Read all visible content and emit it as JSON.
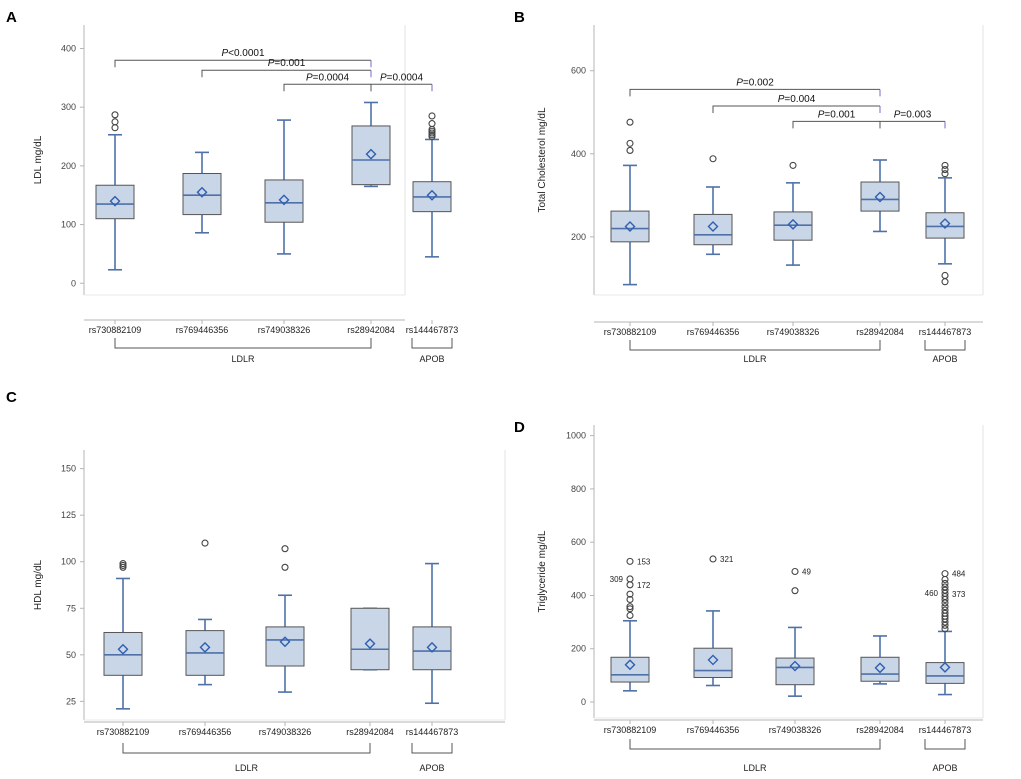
{
  "colors": {
    "box_fill": "#c9d6e8",
    "box_stroke": "#4f71a8",
    "median": "#4f71a8",
    "mean_marker": "#2f5fb0",
    "whisker": "#4f71a8",
    "outlier": "#444444",
    "bracket": "#555555",
    "frame": "#b5b5b5",
    "sig_bracket_end": "#7b68c8"
  },
  "chart_data": [
    {
      "panel": "A",
      "type": "box",
      "ylabel": "LDL mg/dL",
      "ylim": [
        -20,
        440
      ],
      "yticks": [
        0,
        100,
        200,
        300,
        400
      ],
      "categories": [
        "rs730882109",
        "rs769446356",
        "rs749038326",
        "rs28942084",
        "rs144467873"
      ],
      "groups": [
        {
          "label": "LDLR",
          "from": 0,
          "to": 3
        },
        {
          "label": "APOB",
          "from": 4,
          "to": 4
        }
      ],
      "boxes": [
        {
          "min": 23,
          "q1": 110,
          "median": 135,
          "q3": 167,
          "max": 253,
          "mean": 140,
          "outliers": [
            265,
            275,
            287
          ]
        },
        {
          "min": 86,
          "q1": 117,
          "median": 150,
          "q3": 187,
          "max": 223,
          "mean": 155,
          "outliers": []
        },
        {
          "min": 50,
          "q1": 104,
          "median": 137,
          "q3": 176,
          "max": 278,
          "mean": 142,
          "outliers": []
        },
        {
          "min": 165,
          "q1": 168,
          "median": 210,
          "q3": 268,
          "max": 308,
          "mean": 220,
          "outliers": []
        },
        {
          "min": 45,
          "q1": 122,
          "median": 147,
          "q3": 173,
          "max": 245,
          "mean": 150,
          "outliers": [
            250,
            253,
            256,
            259,
            262,
            272,
            285
          ]
        }
      ],
      "pvalues": [
        {
          "text": "P<0.0001",
          "from": 0,
          "to": 3,
          "y": 380
        },
        {
          "text": "P=0.001",
          "from": 1,
          "to": 3,
          "y": 363
        },
        {
          "text": "P=0.0004",
          "from": 2,
          "to": 3,
          "y": 339
        },
        {
          "text": "P=0.0004",
          "from": 3,
          "to": 4,
          "y": 339
        }
      ]
    },
    {
      "panel": "B",
      "type": "box",
      "ylabel": "Total Cholesterol mg/dL",
      "ylim": [
        60,
        710
      ],
      "yticks": [
        200,
        400,
        600
      ],
      "categories": [
        "rs730882109",
        "rs769446356",
        "rs749038326",
        "rs28942084",
        "rs144467873"
      ],
      "groups": [
        {
          "label": "LDLR",
          "from": 0,
          "to": 3
        },
        {
          "label": "APOB",
          "from": 4,
          "to": 4
        }
      ],
      "boxes": [
        {
          "min": 85,
          "q1": 188,
          "median": 220,
          "q3": 262,
          "max": 372,
          "mean": 225,
          "outliers": [
            408,
            425,
            476
          ]
        },
        {
          "min": 158,
          "q1": 181,
          "median": 205,
          "q3": 254,
          "max": 320,
          "mean": 225,
          "outliers": [
            388
          ]
        },
        {
          "min": 132,
          "q1": 192,
          "median": 228,
          "q3": 260,
          "max": 330,
          "mean": 230,
          "outliers": [
            372
          ]
        },
        {
          "min": 213,
          "q1": 262,
          "median": 290,
          "q3": 332,
          "max": 385,
          "mean": 296,
          "outliers": []
        },
        {
          "min": 135,
          "q1": 197,
          "median": 225,
          "q3": 258,
          "max": 342,
          "mean": 232,
          "outliers": [
            92,
            107,
            352,
            362,
            372
          ]
        }
      ],
      "pvalues": [
        {
          "text": "P=0.002",
          "from": 0,
          "to": 3,
          "y": 555
        },
        {
          "text": "P=0.004",
          "from": 1,
          "to": 3,
          "y": 515
        },
        {
          "text": "P=0.001",
          "from": 2,
          "to": 3,
          "y": 478
        },
        {
          "text": "P=0.003",
          "from": 3,
          "to": 4,
          "y": 478
        }
      ]
    },
    {
      "panel": "C",
      "type": "box",
      "ylabel": "HDL mg/dL",
      "ylim": [
        15,
        160
      ],
      "yticks": [
        25,
        50,
        75,
        100,
        125,
        150
      ],
      "categories": [
        "rs730882109",
        "rs769446356",
        "rs749038326",
        "rs28942084",
        "rs144467873"
      ],
      "groups": [
        {
          "label": "LDLR",
          "from": 0,
          "to": 3
        },
        {
          "label": "APOB",
          "from": 4,
          "to": 4
        }
      ],
      "boxes": [
        {
          "min": 21,
          "q1": 39,
          "median": 50,
          "q3": 62,
          "max": 91,
          "mean": 53,
          "outliers": [
            97,
            98,
            99
          ]
        },
        {
          "min": 34,
          "q1": 39,
          "median": 51,
          "q3": 63,
          "max": 69,
          "mean": 54,
          "outliers": [
            110
          ]
        },
        {
          "min": 30,
          "q1": 44,
          "median": 58,
          "q3": 65,
          "max": 82,
          "mean": 57,
          "outliers": [
            97,
            107
          ]
        },
        {
          "min": 42,
          "q1": 42,
          "median": 53,
          "q3": 75,
          "max": 75,
          "mean": 56,
          "outliers": []
        },
        {
          "min": 24,
          "q1": 42,
          "median": 52,
          "q3": 65,
          "max": 99,
          "mean": 54,
          "outliers": []
        }
      ],
      "pvalues": []
    },
    {
      "panel": "D",
      "type": "box",
      "ylabel": "Triglyceride mg/dL",
      "ylim": [
        -60,
        1040
      ],
      "yticks": [
        0,
        200,
        400,
        600,
        800,
        1000
      ],
      "categories": [
        "rs730882109",
        "rs769446356",
        "rs749038326",
        "rs28942084",
        "rs144467873"
      ],
      "groups": [
        {
          "label": "LDLR",
          "from": 0,
          "to": 3
        },
        {
          "label": "APOB",
          "from": 4,
          "to": 4
        }
      ],
      "boxes": [
        {
          "min": 42,
          "q1": 75,
          "median": 102,
          "q3": 168,
          "max": 305,
          "mean": 140,
          "outliers": [
            325,
            350,
            358,
            385,
            405,
            440,
            462,
            528
          ]
        },
        {
          "min": 62,
          "q1": 92,
          "median": 118,
          "q3": 202,
          "max": 342,
          "mean": 158,
          "outliers": [
            537
          ]
        },
        {
          "min": 22,
          "q1": 65,
          "median": 130,
          "q3": 165,
          "max": 280,
          "mean": 135,
          "outliers": [
            418,
            490
          ]
        },
        {
          "min": 68,
          "q1": 78,
          "median": 105,
          "q3": 168,
          "max": 248,
          "mean": 128,
          "outliers": []
        },
        {
          "min": 28,
          "q1": 70,
          "median": 98,
          "q3": 148,
          "max": 265,
          "mean": 130,
          "outliers": [
            275,
            288,
            300,
            312,
            322,
            333,
            345,
            358,
            372,
            385,
            396,
            408,
            420,
            432,
            445,
            460,
            482
          ]
        }
      ],
      "annotations": [
        {
          "text": "153",
          "box": 0,
          "y": 528,
          "side": "right"
        },
        {
          "text": "309",
          "box": 0,
          "y": 462,
          "side": "left"
        },
        {
          "text": "172",
          "box": 0,
          "y": 440,
          "side": "right"
        },
        {
          "text": "321",
          "box": 1,
          "y": 537,
          "side": "right"
        },
        {
          "text": "49",
          "box": 2,
          "y": 490,
          "side": "right"
        },
        {
          "text": "484",
          "box": 4,
          "y": 482,
          "side": "right"
        },
        {
          "text": "460",
          "box": 4,
          "y": 410,
          "side": "left"
        },
        {
          "text": "373",
          "box": 4,
          "y": 405,
          "side": "right"
        }
      ],
      "pvalues": []
    }
  ]
}
